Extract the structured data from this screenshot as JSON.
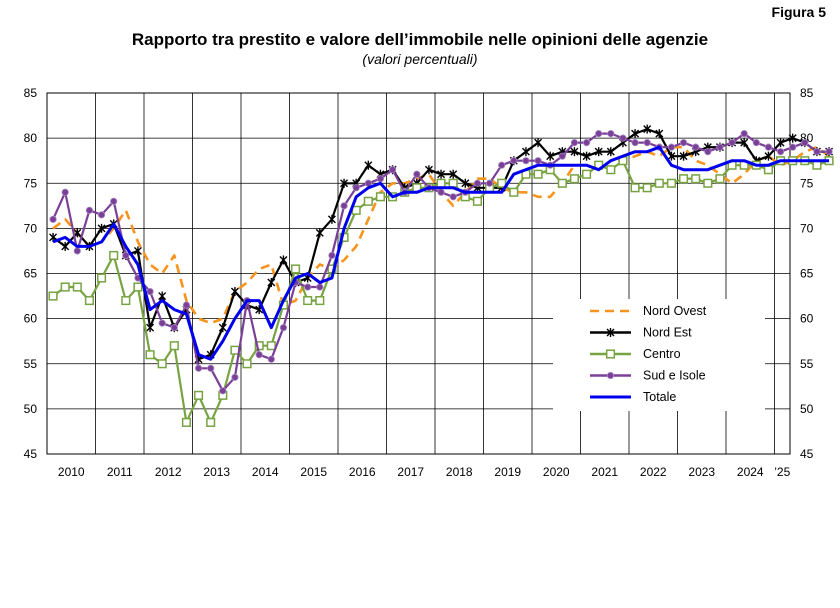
{
  "figure_label": "Figura 5",
  "chart_data": {
    "type": "line",
    "title": "Rapporto tra prestito e valore dell’immobile nelle opinioni delle agenzie",
    "subtitle": "(valori percentuali)",
    "ylim": [
      45,
      85
    ],
    "y_ticks": [
      45,
      50,
      55,
      60,
      65,
      70,
      75,
      80,
      85
    ],
    "x_start_year": 2010,
    "x_tick_labels": [
      "2010",
      "2011",
      "2012",
      "2013",
      "2014",
      "2015",
      "2016",
      "2017",
      "2018",
      "2019",
      "2020",
      "2021",
      "2022",
      "2023",
      "2024",
      "’25"
    ],
    "grid": true,
    "legend_position": "inside-right",
    "series": [
      {
        "name": "Nord Ovest",
        "color": "#f7941d",
        "style": "dashed",
        "marker": "none",
        "values": [
          70.0,
          71.0,
          69.5,
          68.0,
          68.5,
          70.0,
          72.0,
          68.5,
          66.0,
          65.0,
          67.0,
          62.0,
          60.0,
          59.5,
          60.0,
          63.0,
          64.0,
          65.5,
          66.0,
          61.5,
          62.0,
          64.5,
          66.0,
          65.5,
          66.5,
          68.0,
          71.0,
          74.0,
          75.0,
          75.0,
          75.5,
          76.0,
          74.0,
          72.5,
          74.0,
          75.5,
          75.5,
          74.5,
          74.0,
          74.0,
          73.5,
          73.5,
          75.0,
          77.0,
          77.0,
          76.5,
          77.5,
          77.5,
          78.0,
          78.5,
          78.0,
          79.0,
          79.0,
          77.5,
          77.0,
          76.0,
          75.0,
          76.0,
          77.5,
          78.0,
          77.0,
          77.5,
          78.5,
          79.0,
          78.0
        ]
      },
      {
        "name": "Nord Est",
        "color": "#000000",
        "style": "solid",
        "marker": "asterisk",
        "values": [
          69.0,
          68.0,
          69.5,
          68.0,
          70.0,
          70.5,
          67.0,
          67.5,
          59.0,
          62.5,
          59.0,
          61.0,
          55.5,
          56.0,
          59.0,
          63.0,
          61.5,
          61.0,
          64.0,
          66.5,
          64.0,
          64.5,
          69.5,
          71.0,
          75.0,
          75.0,
          77.0,
          76.0,
          76.5,
          74.5,
          75.0,
          76.5,
          76.0,
          76.0,
          75.0,
          74.5,
          74.5,
          74.5,
          77.5,
          78.5,
          79.5,
          78.0,
          78.5,
          78.5,
          78.0,
          78.5,
          78.5,
          79.5,
          80.5,
          81.0,
          80.5,
          78.0,
          78.0,
          78.5,
          79.0,
          79.0,
          79.5,
          79.5,
          77.5,
          78.0,
          79.5,
          80.0,
          79.5,
          78.5,
          78.5
        ]
      },
      {
        "name": "Centro",
        "color": "#77a341",
        "style": "solid",
        "marker": "square",
        "values": [
          62.5,
          63.5,
          63.5,
          62.0,
          64.5,
          67.0,
          62.0,
          63.5,
          56.0,
          55.0,
          57.0,
          48.5,
          51.5,
          48.5,
          51.5,
          56.5,
          55.0,
          57.0,
          57.0,
          61.5,
          65.5,
          62.0,
          62.0,
          65.5,
          69.0,
          72.0,
          73.0,
          73.5,
          73.5,
          74.0,
          74.5,
          74.5,
          75.0,
          75.0,
          73.5,
          73.0,
          74.5,
          75.0,
          74.0,
          76.0,
          76.0,
          76.5,
          75.0,
          75.5,
          76.0,
          77.0,
          76.5,
          77.5,
          74.5,
          74.5,
          75.0,
          75.0,
          75.5,
          75.5,
          75.0,
          75.5,
          77.0,
          77.0,
          77.0,
          76.5,
          77.5,
          77.5,
          77.5,
          77.0,
          77.5
        ]
      },
      {
        "name": "Sud e Isole",
        "color": "#7b3f98",
        "style": "solid",
        "marker": "circle",
        "values": [
          71.0,
          74.0,
          67.5,
          72.0,
          71.5,
          73.0,
          67.0,
          64.5,
          63.0,
          59.5,
          59.0,
          61.5,
          54.5,
          54.5,
          52.0,
          53.5,
          62.0,
          56.0,
          55.5,
          59.0,
          64.0,
          63.5,
          63.5,
          67.0,
          72.5,
          74.5,
          75.0,
          75.5,
          76.5,
          74.0,
          76.0,
          74.5,
          74.0,
          73.5,
          74.0,
          75.0,
          75.0,
          77.0,
          77.5,
          77.5,
          77.5,
          77.0,
          78.0,
          79.5,
          79.5,
          80.5,
          80.5,
          80.0,
          79.5,
          79.5,
          79.0,
          79.0,
          79.5,
          79.0,
          78.5,
          79.0,
          79.5,
          80.5,
          79.5,
          79.0,
          78.5,
          79.0,
          79.5,
          78.5,
          78.5
        ]
      },
      {
        "name": "Totale",
        "color": "#0000ee",
        "style": "solid",
        "marker": "none",
        "values": [
          68.5,
          69.0,
          68.0,
          68.0,
          68.5,
          70.5,
          68.0,
          66.0,
          61.0,
          62.0,
          61.0,
          60.5,
          56.0,
          55.5,
          57.5,
          60.0,
          62.0,
          62.0,
          59.0,
          62.0,
          64.5,
          65.0,
          64.0,
          64.5,
          70.0,
          73.5,
          74.5,
          75.0,
          73.5,
          74.0,
          74.0,
          74.5,
          74.5,
          74.5,
          74.0,
          74.0,
          74.0,
          74.0,
          76.0,
          76.5,
          77.0,
          77.0,
          77.0,
          77.0,
          77.0,
          76.5,
          77.5,
          78.0,
          78.5,
          78.5,
          79.0,
          77.0,
          76.5,
          76.5,
          76.5,
          77.0,
          77.5,
          77.5,
          77.0,
          77.0,
          77.5,
          77.5,
          77.5,
          77.5,
          77.5
        ]
      }
    ]
  }
}
